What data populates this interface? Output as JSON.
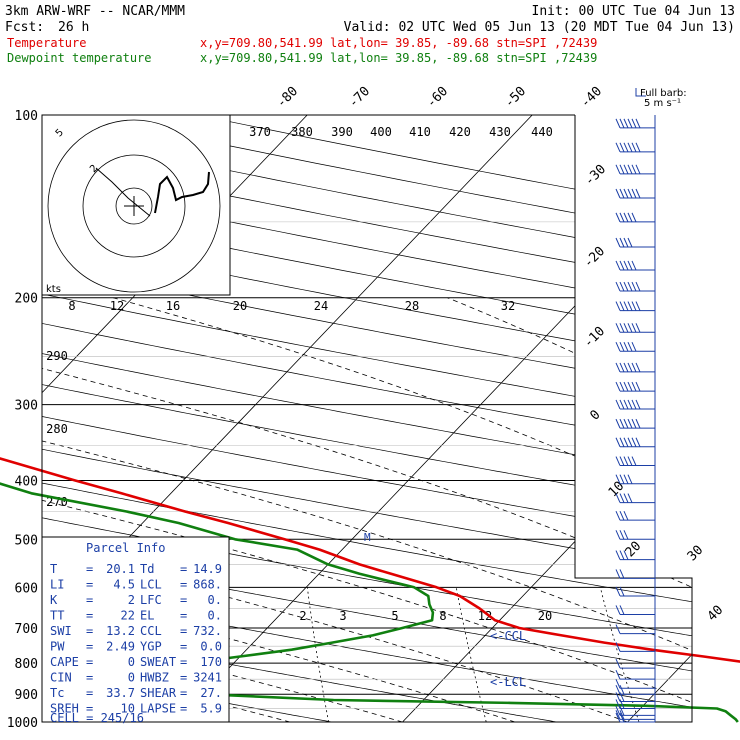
{
  "header": {
    "model": "3km ARW-WRF -- NCAR/MMM",
    "init": "Init: 00 UTC Tue 04 Jun 13",
    "fcst_label": "Fcst:",
    "fcst_value": "26 h",
    "valid": "Valid: 02 UTC Wed 05 Jun 13 (20 MDT Tue 04 Jun 13)"
  },
  "legend": [
    {
      "name": "Temperature",
      "info": "x,y=709.80,541.99   lat,lon= 39.85, -89.68   stn=SPI ,72439",
      "color": "#e00000"
    },
    {
      "name": "Dewpoint temperature",
      "info": "x,y=709.80,541.99   lat,lon= 39.85, -89.68   stn=SPI ,72439",
      "color": "#108010"
    }
  ],
  "barb_note": {
    "line1": "Full barb:",
    "line2": "5 m s⁻¹"
  },
  "hodograph": {
    "ring_label": "5",
    "speed_label": "kts",
    "point_label": "2"
  },
  "parcel_info": {
    "title": "Parcel Info",
    "rows": [
      {
        "l1": "T",
        "v1": "20.1",
        "l2": "Td",
        "v2": "14.9"
      },
      {
        "l1": "LI",
        "v1": "4.5",
        "l2": "LCL",
        "v2": "868."
      },
      {
        "l1": "K",
        "v1": "2",
        "l2": "LFC",
        "v2": "0."
      },
      {
        "l1": "TT",
        "v1": "22",
        "l2": "EL",
        "v2": "0."
      },
      {
        "l1": "SWI",
        "v1": "13.2",
        "l2": "CCL",
        "v2": "732."
      },
      {
        "l1": "PW",
        "v1": "2.49",
        "l2": "YGP",
        "v2": "0.0"
      },
      {
        "l1": "CAPE",
        "v1": "0",
        "l2": "SWEAT",
        "v2": "170"
      },
      {
        "l1": "CIN",
        "v1": "0",
        "l2": "HWBZ",
        "v2": "3241"
      },
      {
        "l1": "Tc",
        "v1": "33.7",
        "l2": "SHEAR",
        "v2": "27."
      },
      {
        "l1": "SREH",
        "v1": "10",
        "l2": "LAPSE",
        "v2": "5.9"
      }
    ],
    "cell": "CELL = 245/16"
  },
  "chart_data": {
    "type": "line",
    "subtype": "skew-T log-p sounding",
    "y_axis": {
      "scale": "log",
      "ticks": [
        100,
        200,
        300,
        400,
        500,
        600,
        700,
        800,
        900,
        1000
      ]
    },
    "isotherm_labels": [
      "-80",
      "-70",
      "-60",
      "-50",
      "-40",
      "-30",
      "-20",
      "-10",
      "0",
      "10",
      "20",
      "30",
      "40"
    ],
    "theta_e_labels": [
      "370",
      "380",
      "390",
      "400",
      "410",
      "420",
      "430",
      "440"
    ],
    "dry_adiabat_labels": [
      "290",
      "280",
      "270"
    ],
    "mixing_ratio_upper_labels": [
      "8",
      "12",
      "16",
      "20",
      "24",
      "28",
      "32"
    ],
    "mixing_ratio_lower_labels": [
      "2",
      "3",
      "5",
      "8",
      "12",
      "20"
    ],
    "markers": {
      "ccl": "<-CCL",
      "lcl": "<-LCL",
      "mark_500": "M"
    },
    "series": [
      {
        "name": "Temperature",
        "color": "#e00000",
        "pressure": [
          1000,
          975,
          950,
          925,
          900,
          880,
          860,
          840,
          820,
          800,
          780,
          760,
          740,
          720,
          700,
          680,
          650,
          620,
          600,
          570,
          550,
          520,
          500,
          470,
          450,
          420,
          400,
          370,
          350,
          320,
          300,
          280,
          260,
          240,
          220,
          200,
          190,
          180,
          170,
          160,
          150,
          140,
          130,
          120,
          110,
          100
        ],
        "temperature": [
          20.1,
          18.4,
          17.8,
          18.6,
          18.2,
          17.4,
          17.0,
          16.6,
          15.2,
          13.0,
          10.6,
          8.0,
          5.6,
          3.4,
          1.2,
          -0.2,
          -1.4,
          -2.8,
          -4.2,
          -6.8,
          -8.6,
          -11.0,
          -13.0,
          -16.2,
          -18.6,
          -22.2,
          -24.8,
          -28.8,
          -31.6,
          -36.4,
          -39.6,
          -43.0,
          -47.2,
          -51.4,
          -55.0,
          -57.2,
          -57.6,
          -56.8,
          -56.0,
          -56.4,
          -57.2,
          -58.0,
          -58.0,
          -56.8,
          -54.4,
          -52.0
        ]
      },
      {
        "name": "Dewpoint temperature",
        "color": "#108010",
        "pressure": [
          1000,
          990,
          975,
          960,
          950,
          940,
          930,
          920,
          900,
          880,
          860,
          840,
          820,
          800,
          780,
          760,
          740,
          720,
          700,
          680,
          660,
          640,
          620,
          600,
          570,
          550,
          520,
          500,
          470,
          450,
          420,
          400,
          370,
          350,
          320,
          300,
          280,
          260,
          240,
          220,
          200,
          190,
          180,
          170,
          160,
          150,
          140,
          130,
          120,
          110,
          100
        ],
        "temperature": [
          14.9,
          14.7,
          14.3,
          13.9,
          13.4,
          10.0,
          4.0,
          -4.0,
          -10.0,
          -12.0,
          -13.0,
          -13.5,
          -13.0,
          -12.0,
          -10.0,
          -8.0,
          -6.5,
          -5.0,
          -4.0,
          -3.0,
          -3.3,
          -3.8,
          -4.2,
          -5.2,
          -8.2,
          -10.0,
          -12.0,
          -15.2,
          -18.4,
          -21.2,
          -26.2,
          -28.6,
          -32.0,
          -34.8,
          -39.6,
          -44.2,
          -53.0,
          -63.0,
          -66.0,
          -66.5,
          -66.0,
          -65.4,
          -64.0,
          -62.8,
          -63.0,
          -64.0,
          -65.0,
          -65.8,
          -67.0,
          -67.8,
          -68.0
        ]
      }
    ],
    "winds": {
      "units": "m/s",
      "pressure": [
        105,
        115,
        125,
        137,
        150,
        165,
        180,
        195,
        210,
        228,
        245,
        265,
        285,
        305,
        328,
        352,
        378,
        405,
        435,
        465,
        500,
        540,
        580,
        620,
        665,
        715,
        765,
        815,
        850,
        880,
        900,
        925,
        950,
        975,
        990,
        1000
      ],
      "speed": [
        30,
        30,
        30,
        28,
        25,
        20,
        25,
        30,
        30,
        28,
        25,
        30,
        30,
        30,
        30,
        28,
        25,
        20,
        20,
        15,
        15,
        15,
        10,
        10,
        8,
        5,
        5,
        5,
        5,
        5,
        8,
        8,
        10,
        10,
        10,
        8
      ]
    }
  }
}
